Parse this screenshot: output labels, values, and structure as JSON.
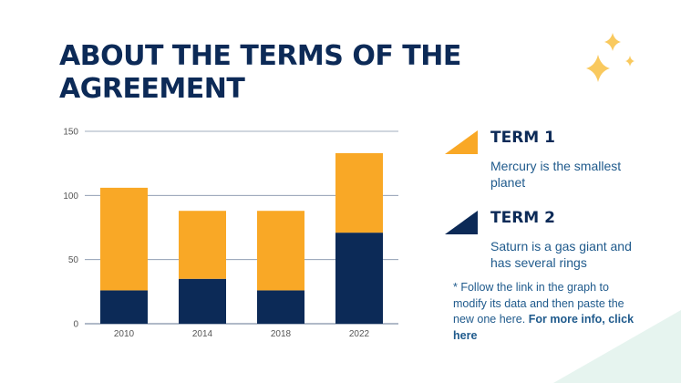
{
  "title": "ABOUT THE TERMS OF THE AGREEMENT",
  "colors": {
    "term1": "#f9a826",
    "term2": "#0c2a57",
    "axis": "#8090a8",
    "text": "#1f5a8c"
  },
  "legend": [
    {
      "heading": "TERM 1",
      "description": "Mercury is the smallest planet"
    },
    {
      "heading": "TERM 2",
      "description": "Saturn is a gas giant and has several rings"
    }
  ],
  "footnote": {
    "text": "* Follow the link in the graph to modify its data and then paste the new one here.",
    "link": "For more info, click here"
  },
  "chart_data": {
    "type": "bar",
    "stacked": true,
    "categories": [
      "2010",
      "2014",
      "2018",
      "2022"
    ],
    "series": [
      {
        "name": "TERM 2",
        "values": [
          26,
          35,
          26,
          71
        ]
      },
      {
        "name": "TERM 1",
        "values": [
          80,
          53,
          62,
          62
        ]
      }
    ],
    "yticks": [
      0,
      50,
      100,
      150
    ],
    "ylim": [
      0,
      150
    ],
    "grid": true
  }
}
